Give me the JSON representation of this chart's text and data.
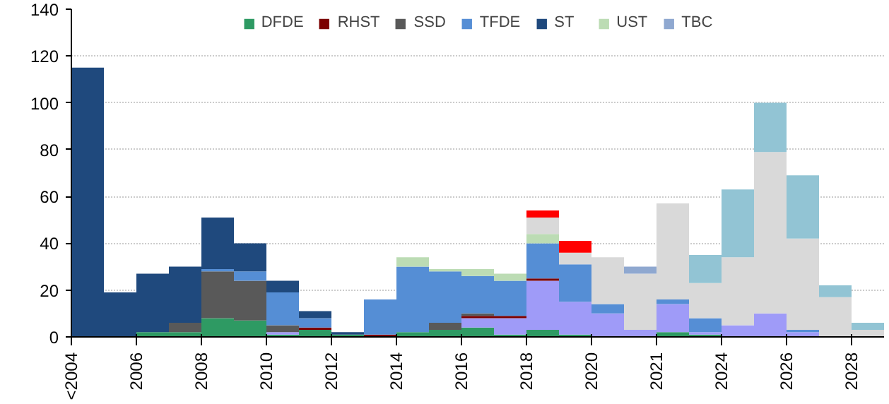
{
  "chart_data": {
    "type": "bar",
    "stacked": true,
    "categories": [
      "<2004",
      null,
      "2006",
      null,
      "2008",
      null,
      "2010",
      null,
      "2012",
      null,
      "2014",
      null,
      "2016",
      null,
      "2018",
      null,
      "2020",
      null,
      "2021",
      null,
      "2024",
      null,
      "2026",
      null,
      "2028"
    ],
    "ylim": [
      0,
      140
    ],
    "yticks": [
      0,
      20,
      40,
      60,
      80,
      100,
      120,
      140
    ],
    "grid": "y",
    "legend": "top",
    "series": [
      {
        "name": "DFDE",
        "color": "#2e9a63",
        "values": [
          0,
          0,
          2,
          2,
          8,
          7,
          1,
          3,
          1,
          0,
          2,
          3,
          4,
          1,
          3,
          1,
          0,
          0,
          2,
          1,
          0,
          0,
          0,
          0,
          0
        ]
      },
      {
        "color": "#9f9bf8",
        "values": [
          0,
          0,
          0,
          0,
          0,
          0,
          1,
          0,
          0,
          0,
          0,
          0,
          4,
          7,
          21,
          14,
          10,
          3,
          12,
          1,
          5,
          10,
          2,
          0,
          0
        ]
      },
      {
        "name": "RHST",
        "color": "#7b0000",
        "values": [
          0,
          0,
          0,
          0,
          0,
          0,
          0,
          1,
          0,
          1,
          0,
          0,
          1,
          1,
          1,
          0,
          0,
          0,
          0,
          0,
          0,
          0,
          0,
          0,
          0
        ]
      },
      {
        "name": "SSD",
        "color": "#595959",
        "values": [
          0,
          0,
          0,
          4,
          20,
          17,
          3,
          0,
          0,
          0,
          0,
          3,
          1,
          0,
          0,
          0,
          0,
          0,
          0,
          0,
          0,
          0,
          0,
          0,
          0
        ]
      },
      {
        "name": "TFDE",
        "color": "#558ed5",
        "values": [
          0,
          0,
          0,
          0,
          1,
          4,
          14,
          4,
          0,
          15,
          28,
          22,
          16,
          15,
          15,
          16,
          4,
          0,
          2,
          6,
          0,
          0,
          1,
          0,
          0
        ]
      },
      {
        "name": "ST",
        "color": "#1f497d",
        "values": [
          115,
          19,
          25,
          24,
          22,
          12,
          5,
          3,
          1,
          0,
          0,
          0,
          0,
          0,
          0,
          0,
          0,
          0,
          0,
          0,
          0,
          0,
          0,
          0,
          0
        ]
      },
      {
        "name": "UST",
        "color": "#bcdcb4",
        "values": [
          0,
          0,
          0,
          0,
          0,
          0,
          0,
          0,
          0,
          0,
          4,
          1,
          3,
          3,
          4,
          0,
          0,
          0,
          0,
          0,
          0,
          0,
          0,
          0,
          0
        ]
      },
      {
        "color": "#d9d9d9",
        "values": [
          0,
          0,
          0,
          0,
          0,
          0,
          0,
          0,
          0,
          0,
          0,
          0,
          0,
          0,
          7,
          5,
          20,
          24,
          41,
          15,
          29,
          69,
          39,
          17,
          3
        ]
      },
      {
        "color": "#ff0000",
        "values": [
          0,
          0,
          0,
          0,
          0,
          0,
          0,
          0,
          0,
          0,
          0,
          0,
          0,
          0,
          3,
          5,
          0,
          0,
          0,
          0,
          0,
          0,
          0,
          0,
          0
        ]
      },
      {
        "name": "TBC",
        "color": "#8fa8d0",
        "values": [
          0,
          0,
          0,
          0,
          0,
          0,
          0,
          0,
          0,
          0,
          0,
          0,
          0,
          0,
          0,
          0,
          0,
          3,
          0,
          0,
          0,
          0,
          0,
          0,
          0
        ]
      },
      {
        "color": "#92c4d4",
        "values": [
          0,
          0,
          0,
          0,
          0,
          0,
          0,
          0,
          0,
          0,
          0,
          0,
          0,
          0,
          0,
          0,
          0,
          0,
          0,
          12,
          29,
          21,
          27,
          5,
          3
        ]
      }
    ]
  }
}
